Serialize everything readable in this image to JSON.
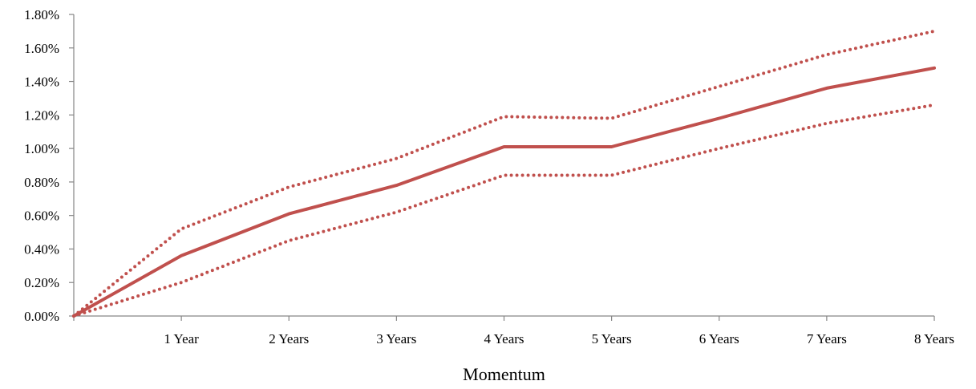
{
  "chart_data": {
    "type": "line",
    "title": "",
    "xlabel": "Momentum",
    "ylabel": "",
    "x": [
      "",
      "1 Year",
      "2 Years",
      "3 Years",
      "4 Years",
      "5 Years",
      "6 Years",
      "7 Years",
      "8 Years"
    ],
    "y_tick_labels": [
      "0.00%",
      "0.20%",
      "0.40%",
      "0.60%",
      "0.80%",
      "1.00%",
      "1.20%",
      "1.40%",
      "1.60%",
      "1.80%"
    ],
    "ylim": [
      0,
      1.8
    ],
    "y_unit": "%",
    "grid": false,
    "legend": "none",
    "series": [
      {
        "style": "dotted",
        "color": "#C0504D",
        "values": [
          0.0,
          0.52,
          0.77,
          0.94,
          1.19,
          1.18,
          1.37,
          1.56,
          1.7
        ]
      },
      {
        "style": "solid",
        "color": "#C0504D",
        "values": [
          0.0,
          0.36,
          0.61,
          0.78,
          1.01,
          1.01,
          1.18,
          1.36,
          1.48
        ]
      },
      {
        "style": "dotted",
        "color": "#C0504D",
        "values": [
          0.0,
          0.2,
          0.45,
          0.62,
          0.84,
          0.84,
          1.0,
          1.15,
          1.26
        ]
      }
    ]
  }
}
